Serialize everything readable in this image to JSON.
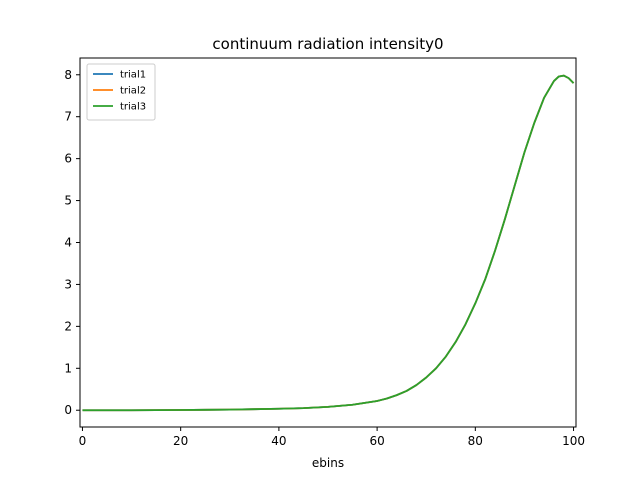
{
  "chart_data": {
    "type": "line",
    "title": "continuum radiation intensity0",
    "xlabel": "ebins",
    "ylabel": "",
    "xlim": [
      -0.5,
      100.5
    ],
    "ylim": [
      -0.4,
      8.4
    ],
    "xticks": [
      0,
      20,
      40,
      60,
      80,
      100
    ],
    "yticks": [
      0,
      1,
      2,
      3,
      4,
      5,
      6,
      7,
      8
    ],
    "legend_position": "upper-left",
    "grid": false,
    "x": [
      0,
      5,
      10,
      15,
      20,
      25,
      30,
      35,
      40,
      45,
      50,
      55,
      60,
      62,
      64,
      66,
      68,
      70,
      72,
      74,
      76,
      78,
      80,
      82,
      84,
      86,
      88,
      90,
      92,
      94,
      96,
      97,
      98,
      99,
      100
    ],
    "series": [
      {
        "name": "trial1",
        "color": "#1f77b4",
        "values": [
          0,
          0,
          0,
          0.003,
          0.006,
          0.01,
          0.015,
          0.025,
          0.035,
          0.05,
          0.08,
          0.13,
          0.22,
          0.28,
          0.36,
          0.46,
          0.6,
          0.78,
          1.0,
          1.28,
          1.63,
          2.05,
          2.55,
          3.12,
          3.8,
          4.55,
          5.35,
          6.15,
          6.85,
          7.45,
          7.85,
          7.96,
          7.98,
          7.92,
          7.8
        ]
      },
      {
        "name": "trial2",
        "color": "#ff7f0e",
        "values": [
          0,
          0,
          0,
          0.003,
          0.006,
          0.01,
          0.015,
          0.025,
          0.035,
          0.05,
          0.08,
          0.13,
          0.22,
          0.28,
          0.36,
          0.46,
          0.6,
          0.78,
          1.0,
          1.28,
          1.63,
          2.05,
          2.55,
          3.12,
          3.8,
          4.55,
          5.35,
          6.15,
          6.85,
          7.45,
          7.85,
          7.96,
          7.98,
          7.92,
          7.8
        ]
      },
      {
        "name": "trial3",
        "color": "#2ca02c",
        "values": [
          0,
          0,
          0,
          0.003,
          0.006,
          0.01,
          0.015,
          0.025,
          0.035,
          0.05,
          0.08,
          0.13,
          0.22,
          0.28,
          0.36,
          0.46,
          0.6,
          0.78,
          1.0,
          1.28,
          1.63,
          2.05,
          2.55,
          3.12,
          3.8,
          4.55,
          5.35,
          6.15,
          6.85,
          7.45,
          7.85,
          7.96,
          7.98,
          7.92,
          7.8
        ]
      }
    ]
  }
}
